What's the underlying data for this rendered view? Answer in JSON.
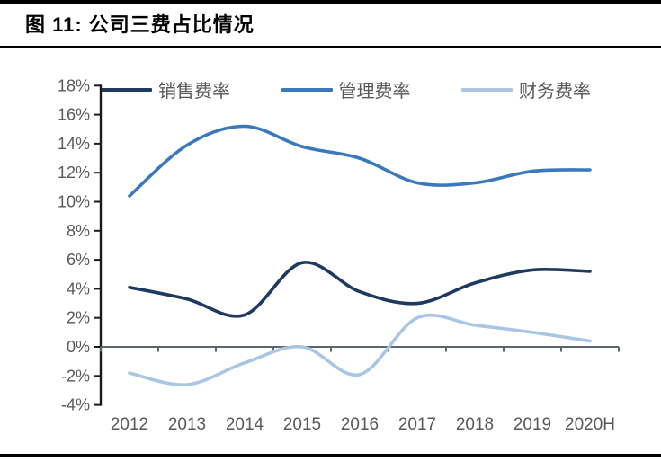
{
  "figure": {
    "title": "图 11: 公司三费占比情况"
  },
  "chart_data": {
    "type": "line",
    "title": "公司三费占比情况",
    "figure_number": "图 11",
    "categories": [
      "2012",
      "2013",
      "2014",
      "2015",
      "2016",
      "2017",
      "2018",
      "2019",
      "2020H"
    ],
    "series": [
      {
        "name": "销售费率",
        "color": "#1F3A5F",
        "values": [
          4.1,
          3.3,
          2.2,
          5.8,
          3.8,
          3.0,
          4.4,
          5.3,
          5.2
        ]
      },
      {
        "name": "管理费率",
        "color": "#3A79BD",
        "values": [
          10.4,
          13.9,
          15.2,
          13.8,
          13.0,
          11.3,
          11.3,
          12.1,
          12.2
        ]
      },
      {
        "name": "财务费率",
        "color": "#A9C6E5",
        "values": [
          -1.8,
          -2.6,
          -1.1,
          0.0,
          -1.9,
          2.0,
          1.5,
          1.0,
          0.4
        ]
      }
    ],
    "ylim": [
      -4,
      18
    ],
    "ytick_step": 2,
    "ytick_suffix": "%",
    "xlabel": "",
    "ylabel": "",
    "grid": false,
    "smooth": true,
    "legend_position": "top",
    "style": {
      "axis_color": "#1a1a1a",
      "zero_line_color": "#5b6670",
      "tick_label_color": "#595959",
      "border_color": "#000000"
    }
  }
}
